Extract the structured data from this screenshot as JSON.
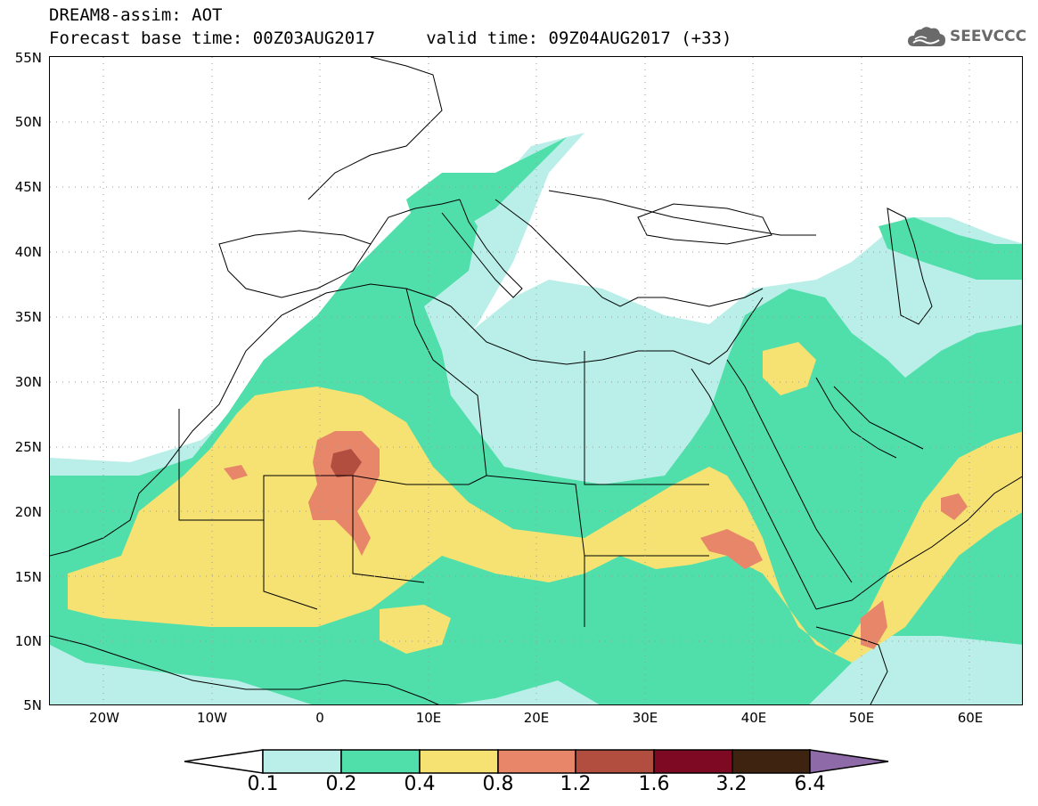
{
  "header": {
    "title": "DREAM8-assim: AOT",
    "subtitle": "Forecast base time: 00Z03AUG2017     valid time: 09Z04AUG2017 (+33)",
    "logo_text": "SEEVCCC",
    "logo_icon": "cloud-icon"
  },
  "map": {
    "lat_labels": [
      "55N",
      "50N",
      "45N",
      "40N",
      "35N",
      "30N",
      "25N",
      "20N",
      "15N",
      "10N",
      "5N"
    ],
    "lon_labels": [
      "20W",
      "10W",
      "0",
      "10E",
      "20E",
      "30E",
      "40E",
      "50E",
      "60E"
    ],
    "extent": {
      "lon": [
        -25,
        65
      ],
      "lat": [
        5,
        55
      ]
    },
    "field": "AOT"
  },
  "colorbar": {
    "labels": [
      "0.1",
      "0.2",
      "0.4",
      "0.8",
      "1.2",
      "1.6",
      "3.2",
      "6.4"
    ],
    "colors": [
      "#ffffff",
      "#b9efe8",
      "#50dfaa",
      "#f5e273",
      "#e8866a",
      "#b24e40",
      "#7d0a22",
      "#3e2410",
      "#8e6aa8"
    ]
  }
}
